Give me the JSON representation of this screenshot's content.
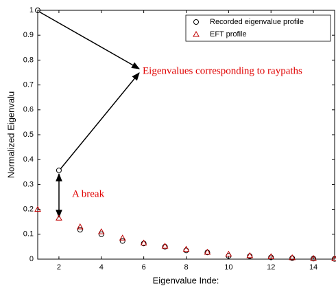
{
  "chart_data": {
    "type": "scatter",
    "x_label": "Eigenvalue Inde:",
    "y_label": "Normalized Eigenvalu",
    "x": [
      1,
      2,
      3,
      4,
      5,
      6,
      7,
      8,
      9,
      10,
      11,
      12,
      13,
      14,
      15
    ],
    "series": [
      {
        "name": "Recorded eigenvalue profile",
        "color": "#000000",
        "marker": "circle",
        "values": [
          1.0,
          0.357,
          0.118,
          0.1,
          0.073,
          0.063,
          0.05,
          0.035,
          0.027,
          0.013,
          0.012,
          0.007,
          0.004,
          0.002,
          0.001
        ]
      },
      {
        "name": "EFT profile",
        "color": "#c00000",
        "marker": "triangle",
        "values": [
          0.2,
          0.165,
          0.13,
          0.11,
          0.085,
          0.065,
          0.052,
          0.04,
          0.028,
          0.02,
          0.014,
          0.01,
          0.006,
          0.003,
          0.002
        ]
      }
    ],
    "xlim": [
      1,
      15
    ],
    "xticks": [
      2,
      4,
      6,
      8,
      10,
      12,
      14
    ],
    "ylim": [
      0,
      1
    ],
    "yticks": [
      0,
      0.1,
      0.2,
      0.3,
      0.4,
      0.5,
      0.6,
      0.7,
      0.8,
      0.9,
      1
    ],
    "annotations": [
      "Eigenvalues corresponding to raypaths",
      "A break"
    ],
    "legend": "upper right"
  }
}
